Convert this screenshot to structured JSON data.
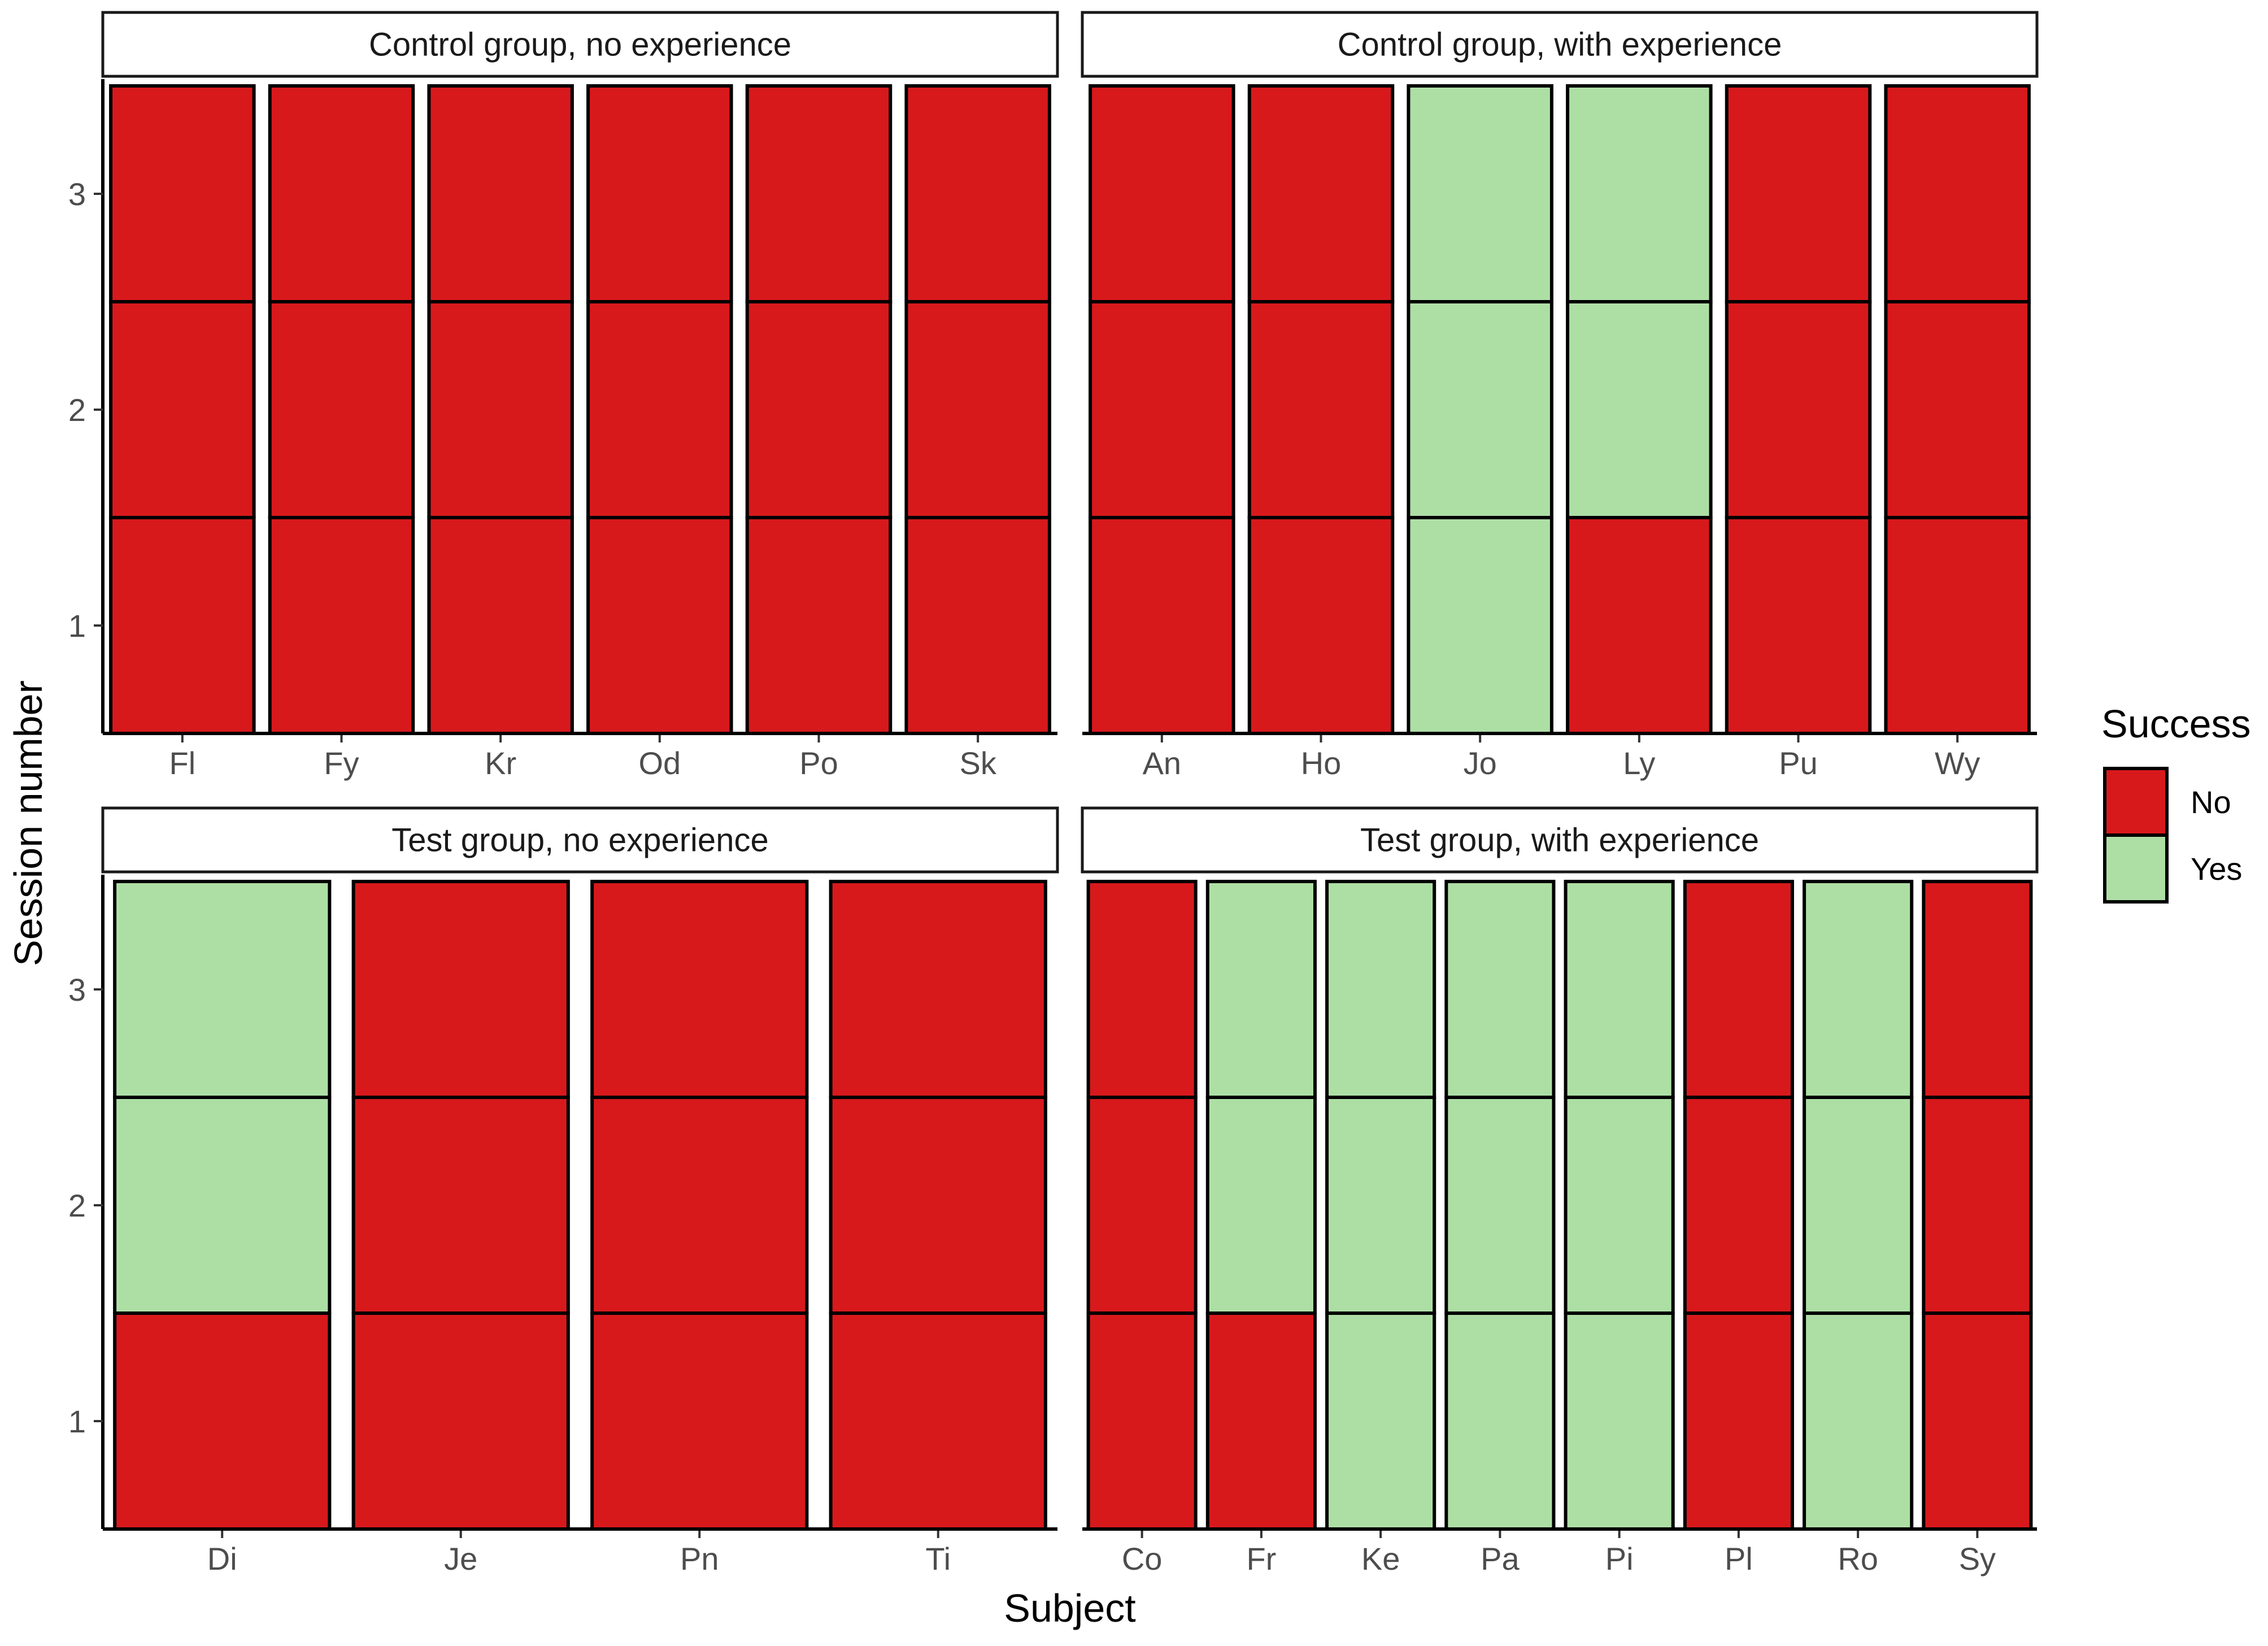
{
  "chart_data": {
    "type": "heatmap",
    "xlabel": "Subject",
    "ylabel": "Session number",
    "y_ticks": [
      1,
      2,
      3
    ],
    "ylim": [
      0.5,
      3.5
    ],
    "grid": false,
    "legend": {
      "title": "Success",
      "placement": "right",
      "entries": [
        {
          "label": "No",
          "color": "#d7191c"
        },
        {
          "label": "Yes",
          "color": "#addfa5"
        }
      ]
    },
    "facets": [
      {
        "title": "Control group, no experience",
        "subjects": [
          "Fl",
          "Fy",
          "Kr",
          "Od",
          "Po",
          "Sk"
        ],
        "success": [
          [
            "No",
            "No",
            "No"
          ],
          [
            "No",
            "No",
            "No"
          ],
          [
            "No",
            "No",
            "No"
          ],
          [
            "No",
            "No",
            "No"
          ],
          [
            "No",
            "No",
            "No"
          ],
          [
            "No",
            "No",
            "No"
          ]
        ]
      },
      {
        "title": "Control group, with experience",
        "subjects": [
          "An",
          "Ho",
          "Jo",
          "Ly",
          "Pu",
          "Wy"
        ],
        "success": [
          [
            "No",
            "No",
            "No"
          ],
          [
            "No",
            "No",
            "No"
          ],
          [
            "Yes",
            "Yes",
            "Yes"
          ],
          [
            "No",
            "Yes",
            "Yes"
          ],
          [
            "No",
            "No",
            "No"
          ],
          [
            "No",
            "No",
            "No"
          ]
        ]
      },
      {
        "title": "Test group, no experience",
        "subjects": [
          "Di",
          "Je",
          "Pn",
          "Ti"
        ],
        "success": [
          [
            "No",
            "Yes",
            "Yes"
          ],
          [
            "No",
            "No",
            "No"
          ],
          [
            "No",
            "No",
            "No"
          ],
          [
            "No",
            "No",
            "No"
          ]
        ]
      },
      {
        "title": "Test group, with experience",
        "subjects": [
          "Co",
          "Fr",
          "Ke",
          "Pa",
          "Pi",
          "Pl",
          "Ro",
          "Sy"
        ],
        "success": [
          [
            "No",
            "No",
            "No"
          ],
          [
            "No",
            "Yes",
            "Yes"
          ],
          [
            "Yes",
            "Yes",
            "Yes"
          ],
          [
            "Yes",
            "Yes",
            "Yes"
          ],
          [
            "Yes",
            "Yes",
            "Yes"
          ],
          [
            "No",
            "No",
            "No"
          ],
          [
            "Yes",
            "Yes",
            "Yes"
          ],
          [
            "No",
            "No",
            "No"
          ]
        ]
      }
    ]
  }
}
